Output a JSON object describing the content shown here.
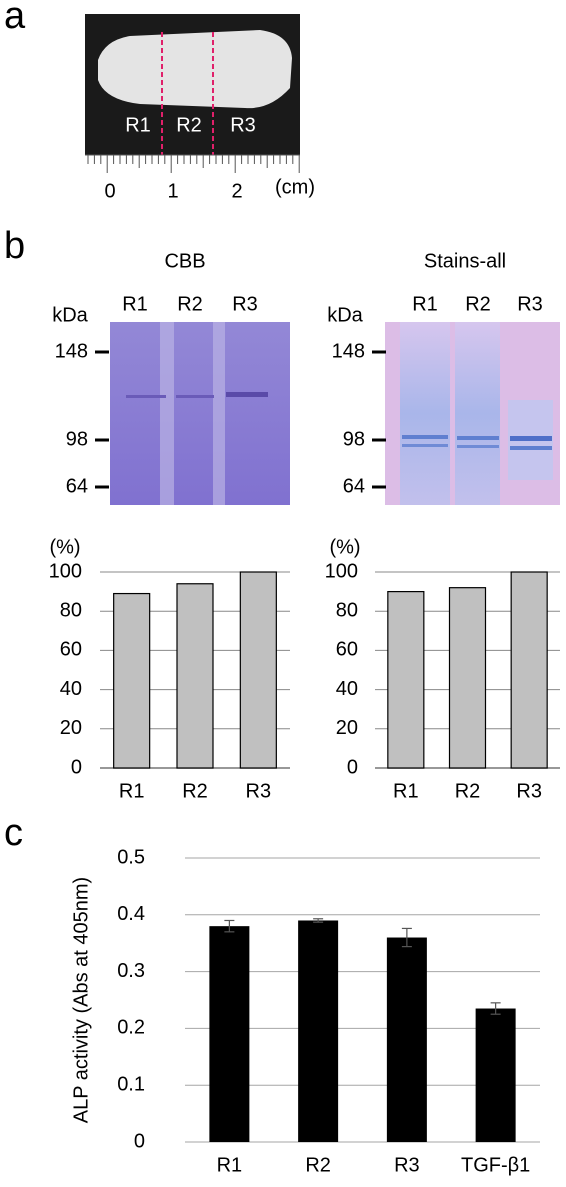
{
  "panel_labels": [
    "a",
    "b",
    "c"
  ],
  "photo": {
    "regions": [
      "R1",
      "R2",
      "R3"
    ],
    "ruler_labels": [
      "0",
      "1",
      "2"
    ],
    "unit": "(cm)"
  },
  "gels": [
    {
      "title": "CBB",
      "lanes": [
        "R1",
        "R2",
        "R3"
      ],
      "unit": "kDa",
      "markers": [
        148,
        98,
        64
      ]
    },
    {
      "title": "Stains-all",
      "lanes": [
        "R1",
        "R2",
        "R3"
      ],
      "unit": "kDa",
      "markers": [
        148,
        98,
        64
      ]
    }
  ],
  "chart_data": [
    {
      "type": "bar",
      "y_label": "(%)",
      "categories": [
        "R1",
        "R2",
        "R3"
      ],
      "values": [
        89,
        94,
        100
      ],
      "color": "#c0c0c0",
      "ylim": [
        0,
        100
      ],
      "yticks": [
        0,
        20,
        40,
        60,
        80,
        100
      ],
      "grid": true
    },
    {
      "type": "bar",
      "y_label": "(%)",
      "categories": [
        "R1",
        "R2",
        "R3"
      ],
      "values": [
        90,
        92,
        100
      ],
      "color": "#c0c0c0",
      "ylim": [
        0,
        100
      ],
      "yticks": [
        0,
        20,
        40,
        60,
        80,
        100
      ],
      "grid": true
    },
    {
      "type": "bar",
      "y_label": "ALP activity (Abs at 405nm)",
      "categories": [
        "R1",
        "R2",
        "R3",
        "TGF-β1"
      ],
      "values": [
        0.38,
        0.39,
        0.36,
        0.235
      ],
      "errors": [
        0.01,
        0.003,
        0.016,
        0.01
      ],
      "color": "#000000",
      "ylim": [
        0,
        0.5
      ],
      "yticks": [
        0,
        0.1,
        0.2,
        0.3,
        0.4,
        0.5
      ],
      "grid": true
    }
  ]
}
